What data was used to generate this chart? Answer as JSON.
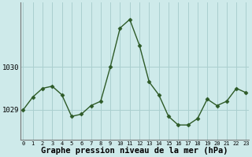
{
  "x": [
    0,
    1,
    2,
    3,
    4,
    5,
    6,
    7,
    8,
    9,
    10,
    11,
    12,
    13,
    14,
    15,
    16,
    17,
    18,
    19,
    20,
    21,
    22,
    23
  ],
  "y": [
    1029.0,
    1029.3,
    1029.5,
    1029.55,
    1029.35,
    1028.85,
    1028.9,
    1029.1,
    1029.2,
    1030.0,
    1030.9,
    1031.1,
    1030.5,
    1029.65,
    1029.35,
    1028.85,
    1028.65,
    1028.65,
    1028.8,
    1029.25,
    1029.1,
    1029.2,
    1029.5,
    1029.4
  ],
  "line_color": "#2d5a27",
  "marker": "D",
  "marker_size": 2.5,
  "bg_color": "#ceeaea",
  "grid_color": "#aacfcf",
  "xlabel": "Graphe pression niveau de la mer (hPa)",
  "xlabel_fontsize": 7.5,
  "ylim": [
    1028.3,
    1031.5
  ],
  "yticks": [
    1029,
    1030
  ],
  "ytick_labels": [
    "1029",
    "1030"
  ],
  "xlim": [
    -0.3,
    23.3
  ],
  "spine_left_color": "#777777",
  "spine_bottom_color": "#777777"
}
